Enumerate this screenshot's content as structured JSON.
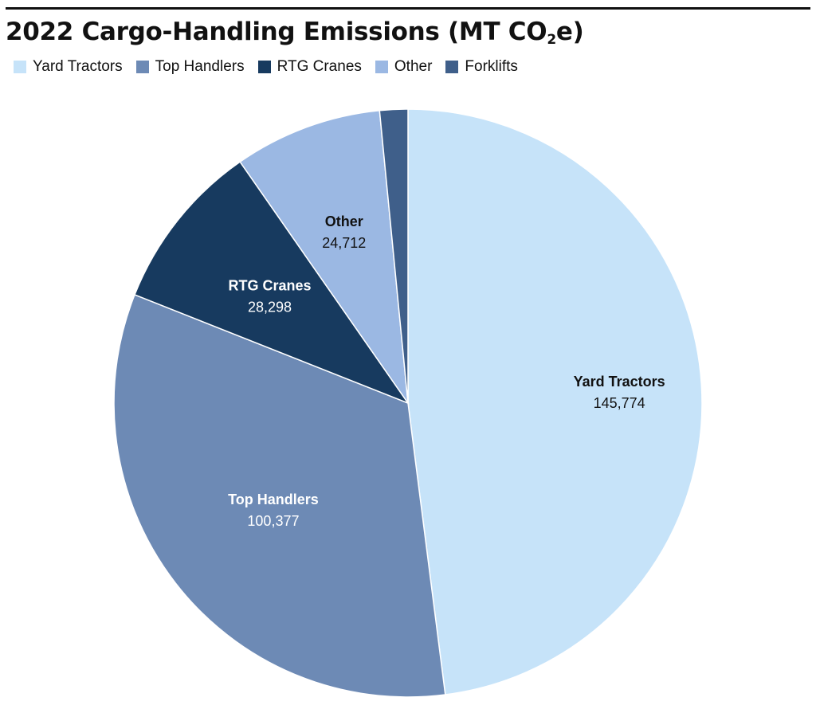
{
  "chart_data": {
    "type": "pie",
    "title_main": "2022 Cargo-Handling Emissions (MT CO",
    "title_sub": "2",
    "title_end": "e)",
    "legend_position": "top-left",
    "slices": [
      {
        "name": "Yard Tractors",
        "value": 145774,
        "value_label": "145,774",
        "color": "#c6e3f9",
        "label_color": "#111111"
      },
      {
        "name": "Top Handlers",
        "value": 100377,
        "value_label": "100,377",
        "color": "#6d8ab5",
        "label_color": "#ffffff"
      },
      {
        "name": "RTG Cranes",
        "value": 28298,
        "value_label": "28,298",
        "color": "#173a5f",
        "label_color": "#ffffff"
      },
      {
        "name": "Other",
        "value": 24712,
        "value_label": "24,712",
        "color": "#9bb8e3",
        "label_color": "#111111"
      },
      {
        "name": "Forklifts",
        "value": 4690,
        "value_label": "",
        "color": "#3f5f8a",
        "label_color": "#ffffff"
      }
    ]
  }
}
